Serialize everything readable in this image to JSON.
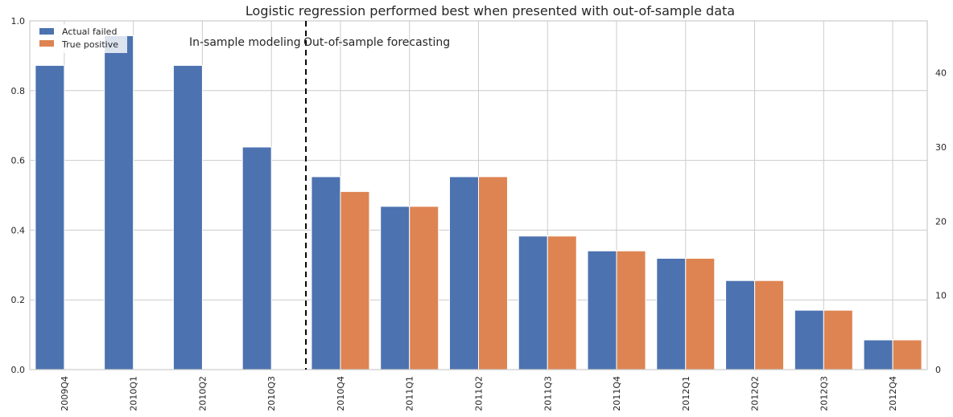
{
  "chart_data": {
    "type": "bar",
    "title": "Logistic regression performed best when presented with out-of-sample data",
    "categories": [
      "2009Q4",
      "2010Q1",
      "2010Q2",
      "2010Q3",
      "2010Q4",
      "2011Q1",
      "2011Q2",
      "2011Q3",
      "2011Q4",
      "2012Q1",
      "2012Q2",
      "2012Q3",
      "2012Q4"
    ],
    "series": [
      {
        "name": "Actual failed",
        "color": "#4c72b0",
        "values": [
          41,
          45,
          41,
          30,
          26,
          22,
          26,
          18,
          16,
          15,
          12,
          8,
          4
        ]
      },
      {
        "name": "True positive",
        "color": "#dd8452",
        "values": [
          0,
          0,
          0,
          0,
          24,
          22,
          26,
          18,
          16,
          15,
          12,
          8,
          4
        ]
      }
    ],
    "left_axis": {
      "ylim": [
        0,
        1.0
      ],
      "ticks": [
        "0.0",
        "0.2",
        "0.4",
        "0.6",
        "0.8",
        "1.0"
      ]
    },
    "right_axis": {
      "ylim": [
        0,
        47
      ],
      "ticks": [
        "0",
        "10",
        "20",
        "30",
        "40"
      ]
    },
    "annotations": [
      {
        "text": "In-sample modeling",
        "side": "left"
      },
      {
        "text": "Out-of-sample forecasting",
        "side": "right"
      }
    ],
    "divider_after_category": "2010Q3",
    "grid": true,
    "legend_position": "top-left"
  }
}
